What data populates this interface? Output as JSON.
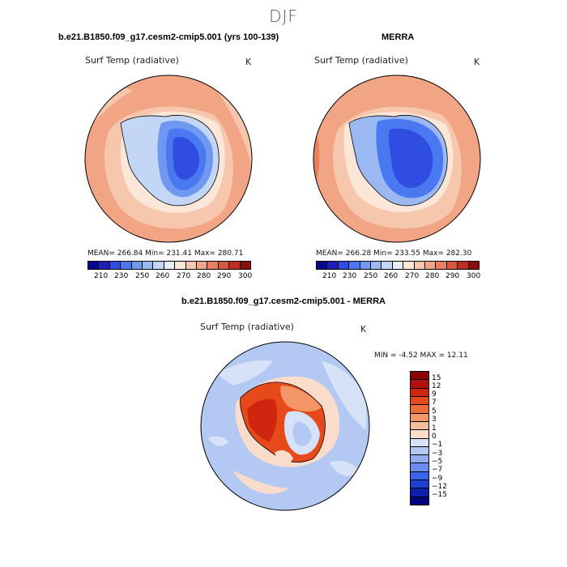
{
  "season": "DJF",
  "panels": {
    "model": {
      "title": "b.e21.B1850.f09_g17.cesm2-cmip5.001 (yrs 100-139)",
      "variable": "Surf Temp (radiative)",
      "units": "K",
      "stats": "MEAN= 266.84   Min= 231.41   Max= 280.71"
    },
    "obs": {
      "title": "MERRA",
      "variable": "Surf Temp (radiative)",
      "units": "K",
      "stats": "MEAN= 266.28   Min= 233.55   Max= 282.30"
    },
    "diff": {
      "title": "b.e21.B1850.f09_g17.cesm2-cmip5.001 - MERRA",
      "variable": "Surf Temp (radiative)",
      "units": "K",
      "stats": "MIN =   -4.52 MAX =   12.11"
    }
  },
  "colorbar_abs": {
    "colors": [
      "#08088e",
      "#1f1fb8",
      "#2f4de0",
      "#4a78f0",
      "#6f98f0",
      "#9ab8f2",
      "#c4d6f5",
      "#e6eefa",
      "#fbe6d8",
      "#f6c7ad",
      "#f2a584",
      "#e97f5f",
      "#d8583e",
      "#c02e1f",
      "#8e0c0a"
    ],
    "labels": [
      "210",
      "230",
      "250",
      "260",
      "270",
      "280",
      "290",
      "300"
    ]
  },
  "colorbar_diff": {
    "colors": [
      "#8b0000",
      "#b11010",
      "#d0250f",
      "#e64a1a",
      "#ef6d3a",
      "#f49668",
      "#f7bd98",
      "#fadccb",
      "#d6e2f7",
      "#b3c8f3",
      "#8fadf0",
      "#6b8ff0",
      "#3c64ea",
      "#1f3fd0",
      "#0a20a8",
      "#000080"
    ],
    "labels": [
      "15",
      "12",
      "9",
      "7",
      "5",
      "3",
      "1",
      "0",
      "−1",
      "−3",
      "−5",
      "−7",
      "−9",
      "−12",
      "−15"
    ]
  }
}
